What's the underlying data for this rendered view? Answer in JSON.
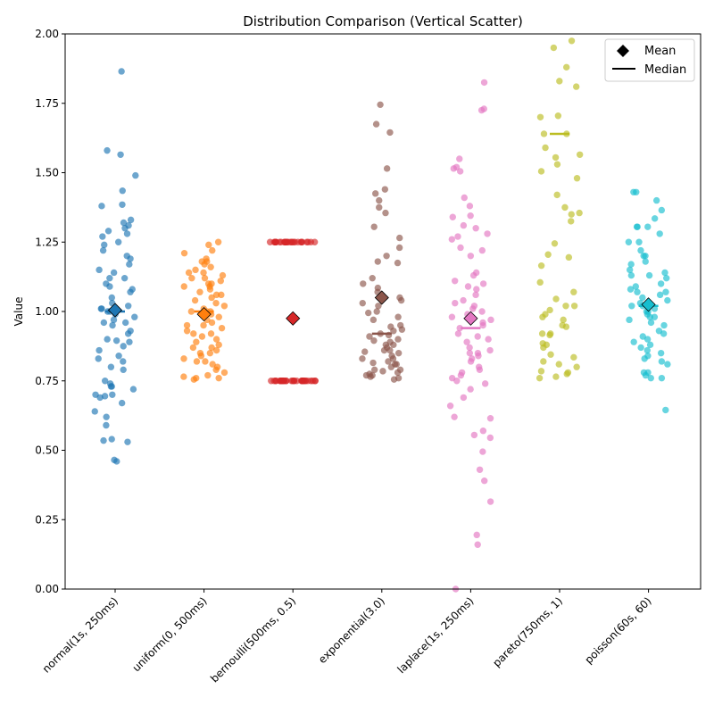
{
  "chart_data": {
    "type": "scatter",
    "title": "Distribution Comparison (Vertical Scatter)",
    "xlabel": "",
    "ylabel": "Value",
    "ylim": [
      0,
      2
    ],
    "yticks": [
      0.0,
      0.25,
      0.5,
      0.75,
      1.0,
      1.25,
      1.5,
      1.75,
      2.0
    ],
    "ytick_labels": [
      "0.00",
      "0.25",
      "0.50",
      "0.75",
      "1.00",
      "1.25",
      "1.50",
      "1.75",
      "2.00"
    ],
    "grid": false,
    "legend": {
      "placement": "top-right",
      "entries": [
        {
          "label": "Mean",
          "marker": "diamond"
        },
        {
          "label": "Median",
          "marker": "line"
        }
      ]
    },
    "categories": [
      "normal(1s, 250ms)",
      "uniform(0, 500ms)",
      "bernoulli(500ms, 0.5)",
      "exponential(3.0)",
      "laplace(1s, 250ms)",
      "pareto(750ms, 1)",
      "poisson(60s, 60)"
    ],
    "series": [
      {
        "name": "normal(1s, 250ms)",
        "color": "#1f77b4",
        "mean": 1.005,
        "median": 1.0,
        "values": [
          1.865,
          1.58,
          1.565,
          1.49,
          1.435,
          1.385,
          1.38,
          1.33,
          1.32,
          1.31,
          1.3,
          1.29,
          1.28,
          1.27,
          1.25,
          1.24,
          1.22,
          1.2,
          1.19,
          1.17,
          1.15,
          1.14,
          1.12,
          1.12,
          1.1,
          1.09,
          1.08,
          1.07,
          1.05,
          1.03,
          1.02,
          1.01,
          1.01,
          1.0,
          1.0,
          0.99,
          0.98,
          0.97,
          0.96,
          0.96,
          0.95,
          0.93,
          0.92,
          0.9,
          0.895,
          0.89,
          0.875,
          0.86,
          0.84,
          0.83,
          0.82,
          0.8,
          0.79,
          0.75,
          0.74,
          0.73,
          0.73,
          0.72,
          0.7,
          0.7,
          0.695,
          0.69,
          0.67,
          0.64,
          0.62,
          0.59,
          0.54,
          0.535,
          0.53,
          0.465,
          0.46
        ]
      },
      {
        "name": "uniform(0, 500ms)",
        "color": "#ff7f0e",
        "mean": 0.99,
        "median": 1.0,
        "values": [
          1.25,
          1.24,
          1.22,
          1.21,
          1.19,
          1.18,
          1.17,
          1.16,
          1.15,
          1.14,
          1.13,
          1.12,
          1.12,
          1.11,
          1.1,
          1.09,
          1.09,
          1.08,
          1.07,
          1.06,
          1.05,
          1.04,
          1.03,
          1.02,
          1.01,
          1.0,
          1.0,
          0.99,
          0.98,
          0.97,
          0.96,
          0.95,
          0.94,
          0.93,
          0.92,
          0.91,
          0.9,
          0.89,
          0.88,
          0.87,
          0.86,
          0.85,
          0.84,
          0.83,
          0.82,
          0.81,
          0.8,
          0.79,
          0.78,
          0.77,
          0.76,
          0.76,
          0.765,
          0.755,
          0.82,
          0.85,
          0.87,
          0.92,
          0.95,
          1.0,
          1.06,
          1.1,
          1.14,
          1.18
        ]
      },
      {
        "name": "bernoulli(500ms, 0.5)",
        "color": "#d62728",
        "mean": 0.975,
        "median": null,
        "values": [
          1.25,
          1.25,
          1.25,
          1.25,
          1.25,
          1.25,
          1.25,
          1.25,
          1.25,
          1.25,
          1.25,
          1.25,
          1.25,
          1.25,
          1.25,
          1.25,
          1.25,
          1.25,
          1.25,
          1.25,
          1.25,
          1.25,
          1.25,
          1.25,
          1.25,
          1.25,
          1.25,
          1.25,
          1.25,
          0.75,
          0.75,
          0.75,
          0.75,
          0.75,
          0.75,
          0.75,
          0.75,
          0.75,
          0.75,
          0.75,
          0.75,
          0.75,
          0.75,
          0.75,
          0.75,
          0.75,
          0.75,
          0.75,
          0.75,
          0.75,
          0.75,
          0.75,
          0.75,
          0.75,
          0.75,
          0.75,
          0.75,
          0.75,
          0.75,
          0.75,
          0.75
        ]
      },
      {
        "name": "exponential(3.0)",
        "color": "#8c564b",
        "mean": 1.05,
        "median": 0.92,
        "values": [
          1.745,
          1.675,
          1.645,
          1.515,
          1.44,
          1.425,
          1.4,
          1.375,
          1.355,
          1.305,
          1.265,
          1.23,
          1.2,
          1.18,
          1.175,
          1.12,
          1.1,
          1.085,
          1.07,
          1.05,
          1.04,
          1.03,
          1.02,
          1.0,
          0.995,
          0.98,
          0.97,
          0.95,
          0.945,
          0.935,
          0.93,
          0.92,
          0.915,
          0.9,
          0.895,
          0.88,
          0.88,
          0.87,
          0.86,
          0.855,
          0.85,
          0.84,
          0.83,
          0.82,
          0.815,
          0.81,
          0.8,
          0.79,
          0.785,
          0.78,
          0.775,
          0.77,
          0.765,
          0.76,
          0.755,
          0.77,
          0.79,
          0.81,
          0.83,
          0.86,
          0.89,
          0.91
        ]
      },
      {
        "name": "laplace(1s, 250ms)",
        "color": "#e377c2",
        "mean": 0.975,
        "median": 0.94,
        "values": [
          1.825,
          1.73,
          1.725,
          1.55,
          1.52,
          1.515,
          1.505,
          1.41,
          1.38,
          1.345,
          1.34,
          1.31,
          1.3,
          1.28,
          1.27,
          1.26,
          1.23,
          1.22,
          1.2,
          1.14,
          1.13,
          1.11,
          1.1,
          1.09,
          1.08,
          1.06,
          1.04,
          1.03,
          1.02,
          1.01,
          1.0,
          0.99,
          0.98,
          0.97,
          0.96,
          0.95,
          0.94,
          0.92,
          0.91,
          0.9,
          0.89,
          0.87,
          0.86,
          0.85,
          0.85,
          0.84,
          0.83,
          0.82,
          0.8,
          0.79,
          0.78,
          0.77,
          0.76,
          0.75,
          0.74,
          0.72,
          0.69,
          0.66,
          0.62,
          0.615,
          0.57,
          0.555,
          0.545,
          0.495,
          0.43,
          0.39,
          0.315,
          0.195,
          0.16,
          0.0
        ]
      },
      {
        "name": "pareto(750ms, 1)",
        "color": "#bcbd22",
        "mean": null,
        "median": 1.64,
        "values": [
          1.975,
          1.95,
          1.88,
          1.83,
          1.81,
          1.705,
          1.7,
          1.64,
          1.64,
          1.59,
          1.565,
          1.555,
          1.53,
          1.505,
          1.48,
          1.42,
          1.375,
          1.355,
          1.35,
          1.325,
          1.245,
          1.205,
          1.195,
          1.165,
          1.105,
          1.07,
          1.045,
          1.02,
          1.02,
          1.005,
          0.99,
          0.98,
          0.97,
          0.95,
          0.945,
          0.92,
          0.92,
          0.915,
          0.885,
          0.88,
          0.87,
          0.845,
          0.835,
          0.82,
          0.81,
          0.8,
          0.785,
          0.78,
          0.775,
          0.765,
          0.76
        ]
      },
      {
        "name": "poisson(60s, 60)",
        "color": "#17becf",
        "mean": 1.025,
        "median": 1.02,
        "values": [
          1.43,
          1.43,
          1.4,
          1.365,
          1.335,
          1.305,
          1.305,
          1.305,
          1.28,
          1.25,
          1.25,
          1.22,
          1.2,
          1.2,
          1.18,
          1.17,
          1.15,
          1.14,
          1.13,
          1.13,
          1.12,
          1.1,
          1.09,
          1.08,
          1.07,
          1.07,
          1.06,
          1.05,
          1.04,
          1.03,
          1.02,
          1.02,
          1.01,
          1.0,
          1.0,
          0.99,
          0.98,
          0.98,
          0.97,
          0.96,
          0.95,
          0.93,
          0.92,
          0.91,
          0.9,
          0.89,
          0.88,
          0.87,
          0.86,
          0.85,
          0.84,
          0.83,
          0.82,
          0.81,
          0.78,
          0.78,
          0.77,
          0.76,
          0.76,
          0.645
        ]
      }
    ]
  }
}
